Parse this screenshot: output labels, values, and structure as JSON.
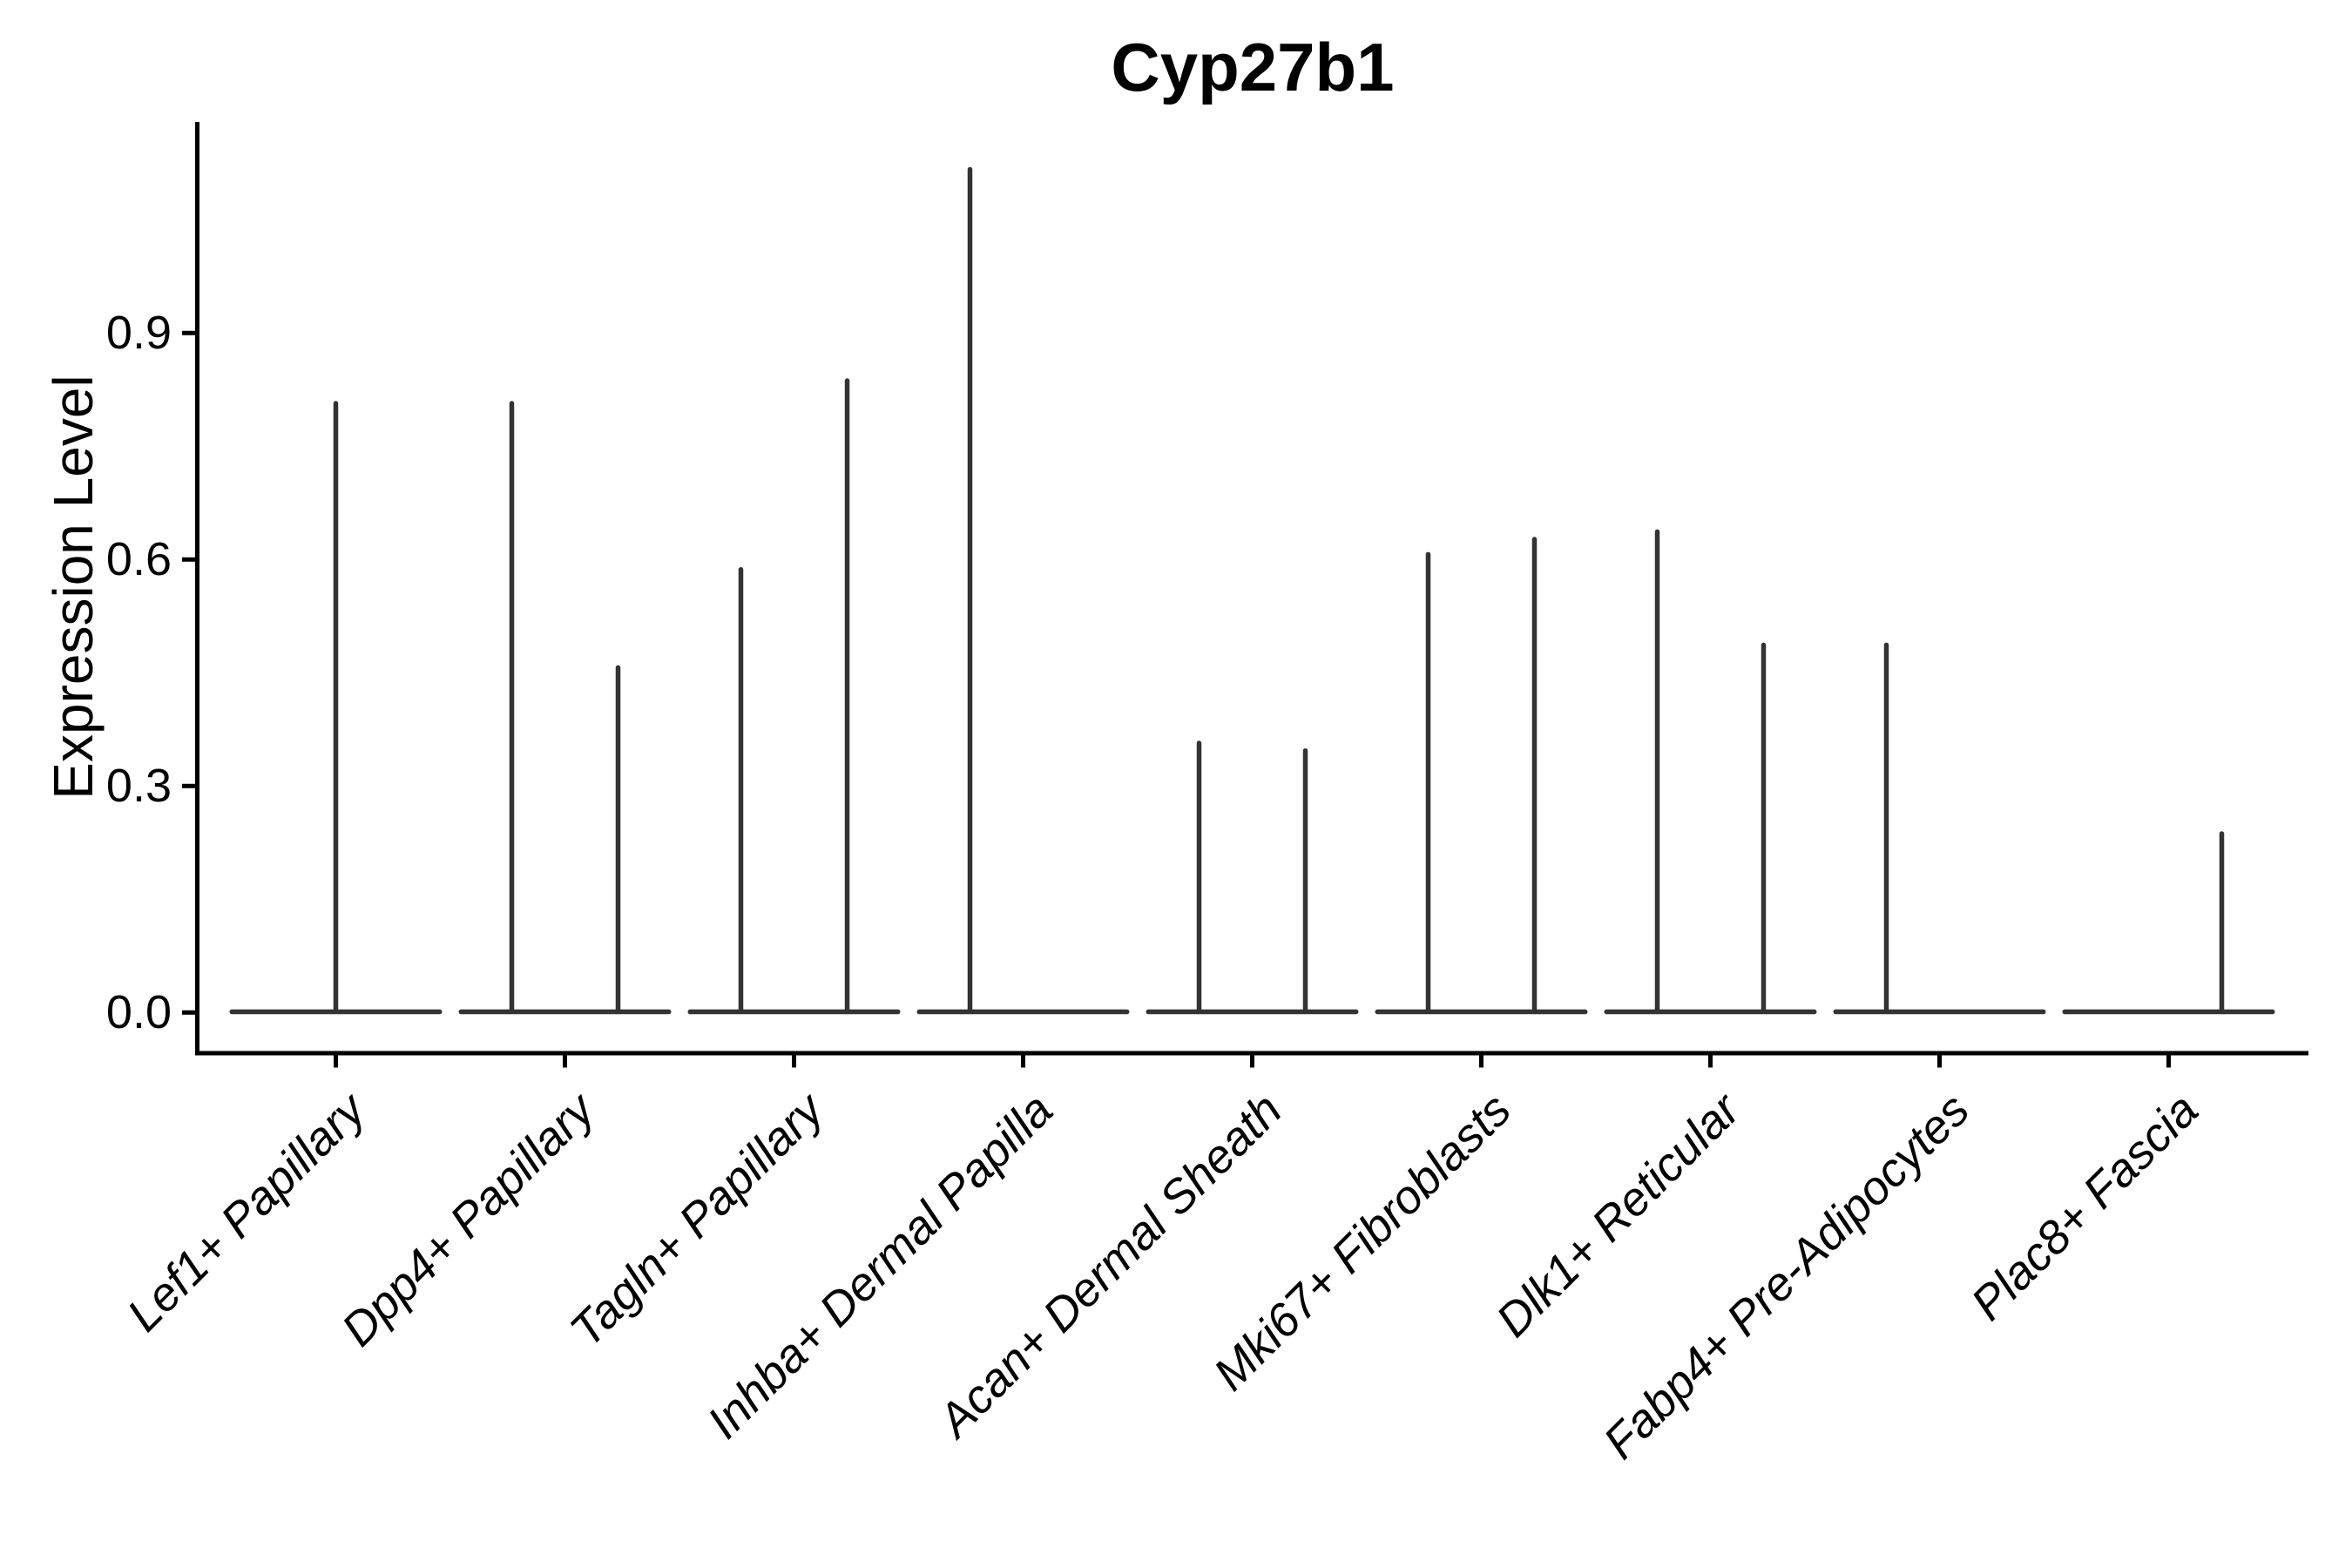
{
  "title": "Cyp27b1",
  "ylabel": "Expression Level",
  "chart_data": {
    "type": "violin",
    "title": "Cyp27b1",
    "xlabel": "",
    "ylabel": "Expression Level",
    "ylim": [
      -0.055,
      1.18
    ],
    "yticks": [
      0.0,
      0.3,
      0.6,
      0.9
    ],
    "ytick_labels": [
      "0.0",
      "0.3",
      "0.6",
      "0.9"
    ],
    "grid": false,
    "legend": "none",
    "categories": [
      "Lef1+ Papillary",
      "Dpp4+ Papillary",
      "Tagln+ Papillary",
      "Inhba+ Dermal Papilla",
      "Acan+ Dermal Sheath",
      "Mki67+ Fibroblasts",
      "Dlk1+ Reticular",
      "Fabp4+ Pre-Adipocytes",
      "Plac8+ Fascia"
    ],
    "description": "Violin plot of Cyp27b1 expression per cell type; expression is near zero in most cells so each violin collapses to a flat base at 0 with a thin spike up to the maximum expressing cell. Categories with two sub-violins show two spikes.",
    "violins": [
      {
        "category": "Lef1+ Papillary",
        "slot": "full",
        "max_expression": 0.81
      },
      {
        "category": "Dpp4+ Papillary",
        "slot": "left",
        "max_expression": 0.81
      },
      {
        "category": "Dpp4+ Papillary",
        "slot": "right",
        "max_expression": 0.46
      },
      {
        "category": "Tagln+ Papillary",
        "slot": "left",
        "max_expression": 0.59
      },
      {
        "category": "Tagln+ Papillary",
        "slot": "right",
        "max_expression": 0.84
      },
      {
        "category": "Inhba+ Dermal Papilla",
        "slot": "left",
        "max_expression": 1.12
      },
      {
        "category": "Inhba+ Dermal Papilla",
        "slot": "right",
        "max_expression": 0
      },
      {
        "category": "Acan+ Dermal Sheath",
        "slot": "left",
        "max_expression": 0.36
      },
      {
        "category": "Acan+ Dermal Sheath",
        "slot": "right",
        "max_expression": 0.35
      },
      {
        "category": "Mki67+ Fibroblasts",
        "slot": "left",
        "max_expression": 0.61
      },
      {
        "category": "Mki67+ Fibroblasts",
        "slot": "right",
        "max_expression": 0.63
      },
      {
        "category": "Dlk1+ Reticular",
        "slot": "left",
        "max_expression": 0.64
      },
      {
        "category": "Dlk1+ Reticular",
        "slot": "right",
        "max_expression": 0.49
      },
      {
        "category": "Fabp4+ Pre-Adipocytes",
        "slot": "left",
        "max_expression": 0.49
      },
      {
        "category": "Fabp4+ Pre-Adipocytes",
        "slot": "right",
        "max_expression": 0
      },
      {
        "category": "Plac8+ Fascia",
        "slot": "left",
        "max_expression": 0
      },
      {
        "category": "Plac8+ Fascia",
        "slot": "right",
        "max_expression": 0.24
      }
    ],
    "colors": {
      "violin": "#333333",
      "axis": "#000000",
      "text": "#000000",
      "background": "#ffffff"
    }
  }
}
